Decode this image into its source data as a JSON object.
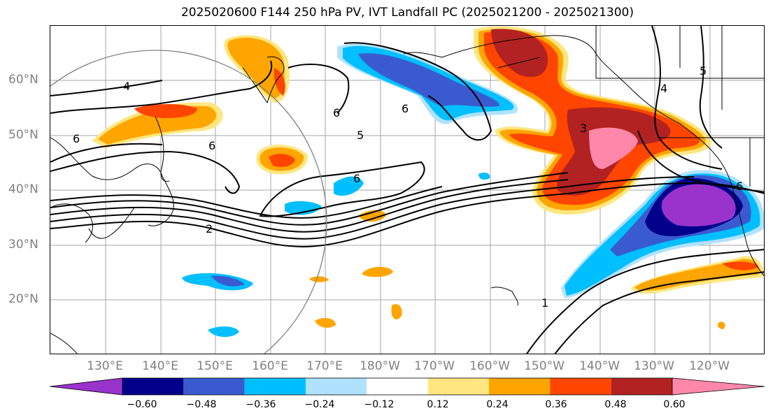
{
  "title": "2025020600 F144 250 hPa PV, IVT Landfall PC (2025021200 - 2025021300)",
  "map": {
    "latitude_labels": [
      "60°N",
      "50°N",
      "40°N",
      "30°N",
      "20°N"
    ],
    "longitude_labels": [
      "130°E",
      "140°E",
      "150°E",
      "160°E",
      "170°E",
      "180°W",
      "170°W",
      "160°W",
      "150°W",
      "140°W",
      "130°W",
      "120°W"
    ],
    "contour_labels": [
      "4",
      "6",
      "6",
      "6",
      "6",
      "2",
      "1",
      "3",
      "5",
      "6",
      "6",
      "5",
      "4"
    ]
  },
  "colorbar": {
    "ticks": [
      "−0.60",
      "−0.48",
      "−0.36",
      "−0.24",
      "−0.12",
      "0.12",
      "0.24",
      "0.36",
      "0.48",
      "0.60"
    ],
    "colors": [
      "#9933cc",
      "#00008b",
      "#3a5bd0",
      "#00bfff",
      "#b0e2ff",
      "#ffffff",
      "#ffe680",
      "#ffa500",
      "#ff4500",
      "#b22222",
      "#ff88aa"
    ]
  }
}
